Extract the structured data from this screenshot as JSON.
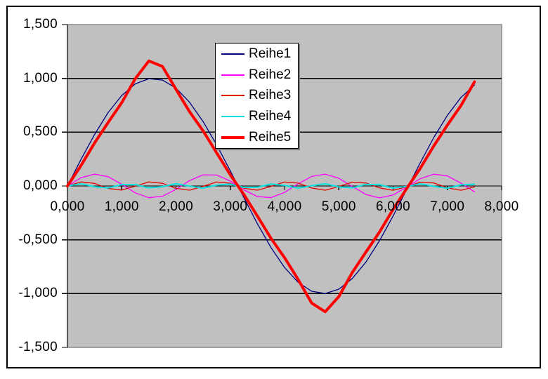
{
  "chart_data": {
    "type": "line",
    "title": "",
    "number_format": "german-comma-3-decimals",
    "x_axis": {
      "min": 0,
      "max": 8,
      "tick_step": 1,
      "tick_values": [
        0,
        1,
        2,
        3,
        4,
        5,
        6,
        7,
        8
      ],
      "tick_labels": [
        "0,000",
        "1,000",
        "2,000",
        "3,000",
        "4,000",
        "5,000",
        "6,000",
        "7,000",
        "8,000"
      ]
    },
    "y_axis": {
      "min": -1.5,
      "max": 1.5,
      "tick_step": 0.5,
      "tick_values": [
        1.5,
        1.0,
        0.5,
        0.0,
        -0.5,
        -1.0,
        -1.5
      ],
      "tick_labels": [
        "1,500",
        "1,000",
        "0,500",
        "0,000",
        "-0,500",
        "-1,000",
        "-1,500"
      ]
    },
    "grid": "horizontal-on",
    "plot_background": "#c0c0c0",
    "plot_border_color": "#8a8a8a",
    "gridline_color": "#000000",
    "axis_color": "#000000",
    "legend": {
      "position": "top-center-overlay",
      "background": "#ffffff",
      "border_color": "#000000"
    },
    "sample_x": [
      0,
      0.25,
      0.5,
      0.75,
      1,
      1.25,
      1.5,
      1.75,
      2,
      2.25,
      2.5,
      2.75,
      3,
      3.25,
      3.5,
      3.75,
      4,
      4.25,
      4.5,
      4.75,
      5,
      5.25,
      5.5,
      5.75,
      6,
      6.25,
      6.5,
      6.75,
      7,
      7.25,
      7.5
    ],
    "series": [
      {
        "name": "Reihe1",
        "color": "#000080",
        "stroke_width": 1.3,
        "formula": "sin(x)",
        "values": [
          0,
          0.247,
          0.479,
          0.682,
          0.841,
          0.949,
          0.997,
          0.984,
          0.909,
          0.778,
          0.599,
          0.382,
          0.141,
          -0.108,
          -0.351,
          -0.572,
          -0.757,
          -0.895,
          -0.978,
          -0.999,
          -0.959,
          -0.859,
          -0.706,
          -0.508,
          -0.279,
          -0.033,
          0.215,
          0.45,
          0.657,
          0.823,
          0.938
        ]
      },
      {
        "name": "Reihe2",
        "color": "#ff00ff",
        "stroke_width": 1.3,
        "formula": "sin(3x)/9",
        "values": [
          0,
          0.076,
          0.111,
          0.086,
          0.016,
          -0.064,
          -0.109,
          -0.095,
          -0.031,
          0.05,
          0.104,
          0.102,
          0.046,
          -0.036,
          -0.098,
          -0.108,
          -0.06,
          0.02,
          0.089,
          0.11,
          0.072,
          -0.005,
          -0.079,
          -0.111,
          -0.083,
          -0.011,
          0.067,
          0.11,
          0.093,
          0.027,
          -0.054
        ]
      },
      {
        "name": "Reihe3",
        "color": "#e00000",
        "stroke_width": 1.3,
        "formula": "sin(5x)/25",
        "values": [
          0,
          0.038,
          0.024,
          -0.023,
          -0.038,
          -0.001,
          0.038,
          0.025,
          -0.022,
          -0.039,
          -0.003,
          0.037,
          0.026,
          -0.021,
          -0.039,
          -0.004,
          0.037,
          0.027,
          -0.019,
          -0.039,
          -0.005,
          0.036,
          0.028,
          -0.018,
          -0.04,
          -0.007,
          0.035,
          0.029,
          -0.017,
          -0.04,
          -0.008
        ]
      },
      {
        "name": "Reihe4",
        "color": "#00e0e0",
        "stroke_width": 2,
        "formula": "sin(7x)/49",
        "values": [
          0,
          0.02,
          -0.007,
          -0.018,
          0.013,
          0.013,
          -0.018,
          -0.006,
          0.02,
          -0.001,
          -0.02,
          0.008,
          0.017,
          -0.014,
          -0.012,
          0.018,
          0.006,
          -0.02,
          0.002,
          0.02,
          -0.009,
          -0.017,
          0.015,
          0.011,
          -0.019,
          -0.005,
          0.02,
          -0.003,
          -0.02,
          0.01,
          0.016
        ]
      },
      {
        "name": "Reihe5",
        "color": "#ff0000",
        "stroke_width": 4,
        "formula": "sin(x)-sin(3x)/9+sin(5x)/25-sin(7x)/49",
        "values": [
          0,
          0.19,
          0.4,
          0.59,
          0.774,
          0.998,
          1.162,
          1.111,
          0.898,
          0.69,
          0.512,
          0.308,
          0.104,
          -0.079,
          -0.28,
          -0.486,
          -0.666,
          -0.868,
          -1.088,
          -1.169,
          -1.028,
          -0.802,
          -0.613,
          -0.427,
          -0.217,
          -0.024,
          0.163,
          0.372,
          0.566,
          0.747,
          0.968
        ]
      }
    ]
  }
}
